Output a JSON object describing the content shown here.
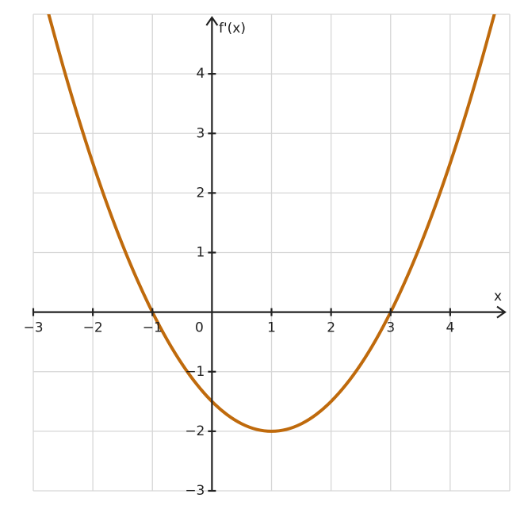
{
  "chart_data": {
    "type": "line",
    "x_label": "x",
    "y_label": "f'(x)",
    "xlim": [
      -3,
      5
    ],
    "ylim": [
      -3,
      5
    ],
    "xticks": [
      {
        "value": -3,
        "label": "−3"
      },
      {
        "value": -2,
        "label": "−2"
      },
      {
        "value": -1,
        "label": "−1"
      },
      0,
      1,
      2,
      3,
      4
    ],
    "yticks": [
      {
        "value": -3,
        "label": "−3"
      },
      {
        "value": -2,
        "label": "−2"
      },
      {
        "value": -1,
        "label": "−1"
      },
      1,
      2,
      3,
      4
    ],
    "grid": true,
    "series": [
      {
        "color": "#bf6a0c",
        "x": [
          -2.75,
          -2.5,
          -2.25,
          -2,
          -1.75,
          -1.5,
          -1.25,
          -1,
          -0.75,
          -0.5,
          -0.25,
          0,
          0.25,
          0.5,
          0.75,
          1,
          1.25,
          1.5,
          1.75,
          2,
          2.25,
          2.5,
          2.75,
          3,
          3.25,
          3.5,
          3.75,
          4,
          4.25,
          4.5,
          4.75
        ],
        "values": [
          5.03125,
          4.125,
          3.28125,
          2.5,
          1.78125,
          1.125,
          0.53125,
          0,
          -0.46875,
          -0.875,
          -1.21875,
          -1.5,
          -1.71875,
          -1.875,
          -1.96875,
          -2,
          -1.96875,
          -1.875,
          -1.71875,
          -1.5,
          -1.21875,
          -0.875,
          -0.46875,
          0,
          0.53125,
          1.125,
          1.78125,
          2.5,
          3.28125,
          4.125,
          5.03125
        ]
      }
    ]
  }
}
